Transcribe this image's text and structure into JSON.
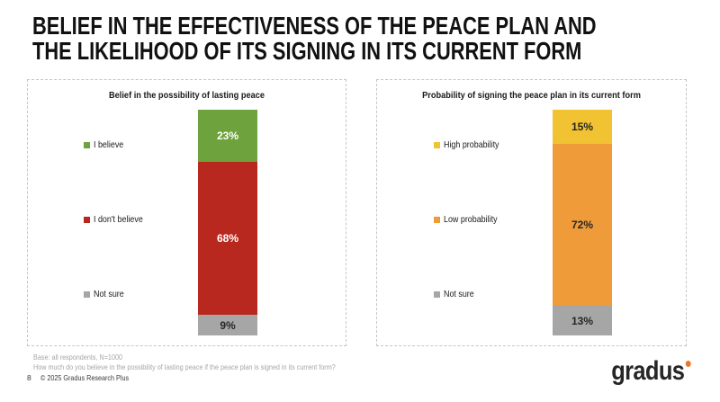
{
  "slide": {
    "title_line1": "BELIEF IN THE EFFECTIVENESS OF THE PEACE PLAN AND",
    "title_line2": "THE LIKELIHOOD OF ITS SIGNING IN ITS CURRENT FORM",
    "footer": {
      "base_note": "Base: all respondents, N=1000",
      "question": "How much do you believe in the possibility of lasting peace if the peace plan is signed in its current form?",
      "page_number": "8",
      "copyright": "© 2025 Gradus Research Plus"
    },
    "logo": {
      "text": "gradus",
      "dot_color": "#E8772C",
      "text_color": "#262626"
    }
  },
  "chart_data": [
    {
      "type": "bar",
      "stacked": true,
      "orientation": "vertical",
      "title": "Belief in the possibility of lasting peace",
      "unit": "%",
      "legend_position": "left",
      "total": 100,
      "segments": [
        {
          "label": "I believe",
          "value": 23,
          "color": "#6DA23D",
          "label_color": "#FFFFFF"
        },
        {
          "label": "I don't believe",
          "value": 68,
          "color": "#B8281E",
          "label_color": "#FFFFFF"
        },
        {
          "label": "Not sure",
          "value": 9,
          "color": "#A6A6A6",
          "label_color": "#262626"
        }
      ]
    },
    {
      "type": "bar",
      "stacked": true,
      "orientation": "vertical",
      "title": "Probability of signing the peace plan in its current form",
      "unit": "%",
      "legend_position": "left",
      "total": 100,
      "segments": [
        {
          "label": "High probability",
          "value": 15,
          "color": "#F1C232",
          "label_color": "#262626"
        },
        {
          "label": "Low probability",
          "value": 72,
          "color": "#EF9B39",
          "label_color": "#262626"
        },
        {
          "label": "Not sure",
          "value": 13,
          "color": "#A6A6A6",
          "label_color": "#262626"
        }
      ]
    }
  ]
}
